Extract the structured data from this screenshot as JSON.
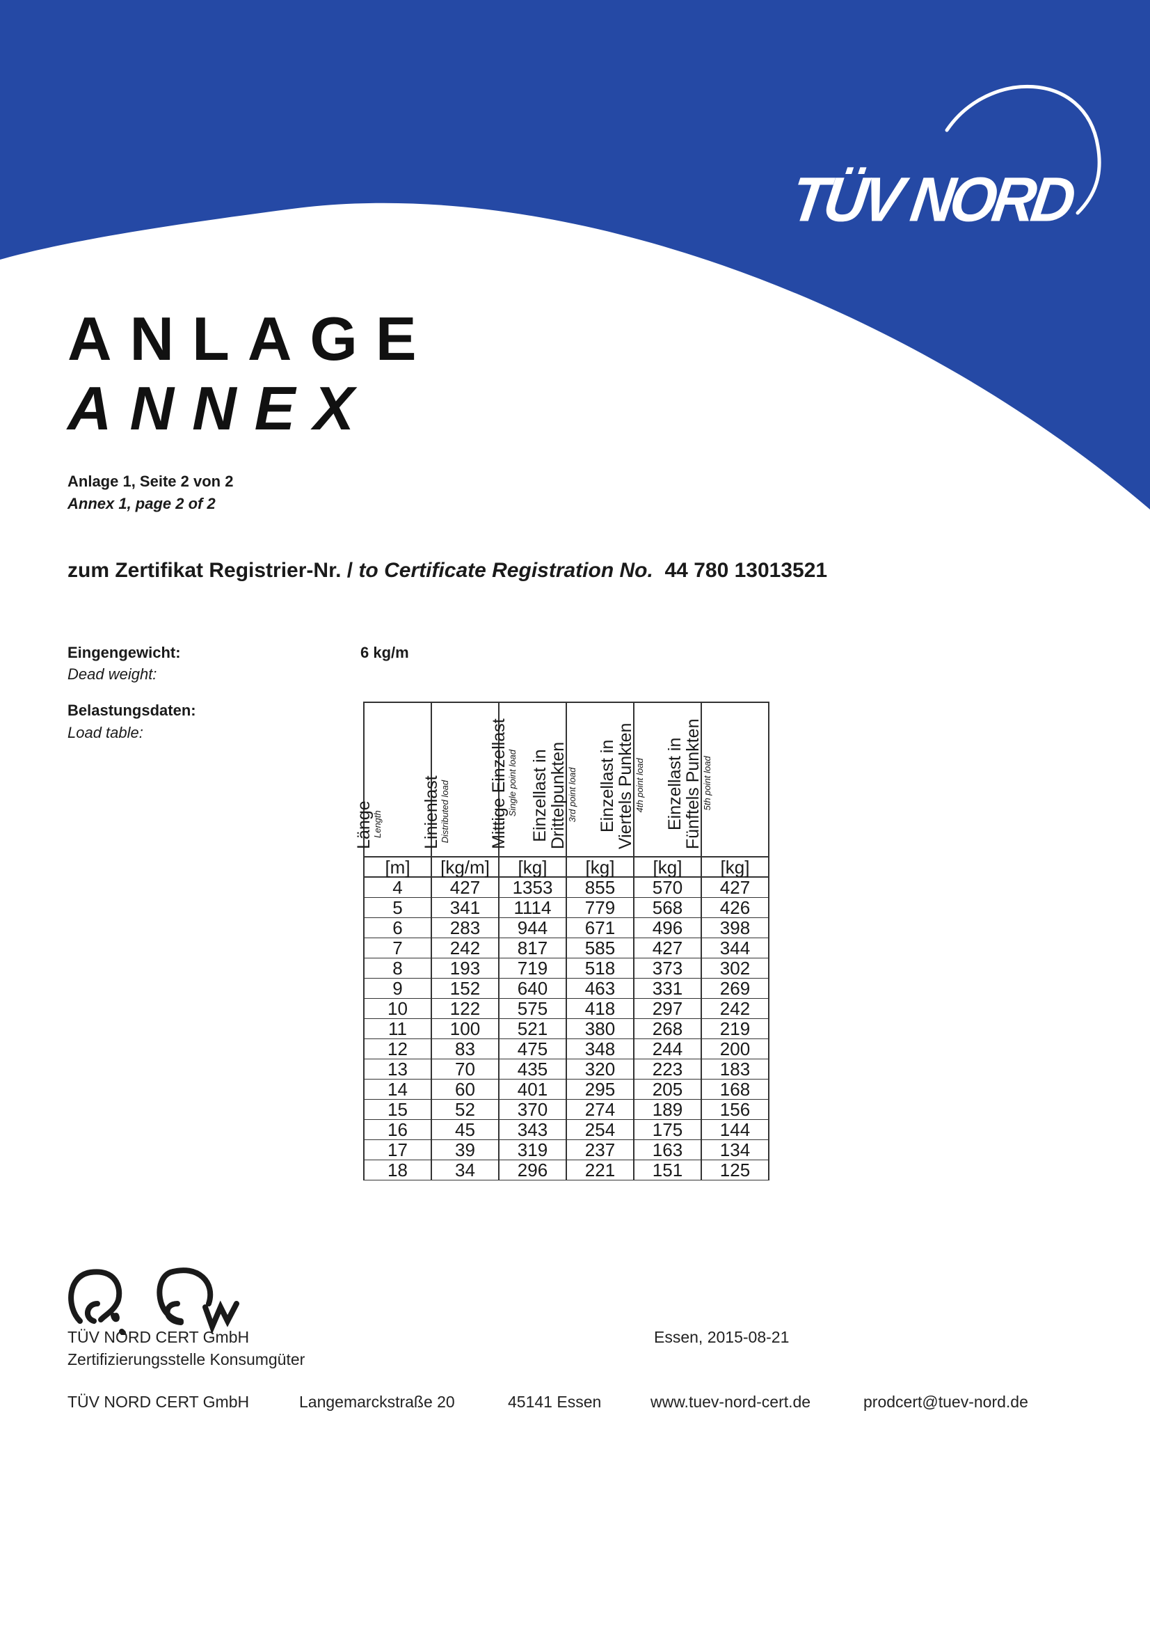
{
  "brand": {
    "logo_text": "TÜV NORD",
    "color": "#2549A5"
  },
  "title": {
    "de": "ANLAGE",
    "en": "ANNEX"
  },
  "page": {
    "de": "Anlage 1, Seite 2 von 2",
    "en": "Annex 1, page 2 of 2"
  },
  "certificate": {
    "label_de": "zum Zertifikat Registrier-Nr. / ",
    "label_en": "to Certificate Registration No.",
    "number": "44 780 13013521"
  },
  "dead_weight": {
    "label_de": "Eingengewicht:",
    "label_en": "Dead weight:",
    "value": "6 kg/m"
  },
  "load_table": {
    "label_de": "Belastungsdaten:",
    "label_en": "Load table:",
    "columns": [
      {
        "de": [
          "Länge"
        ],
        "en": "Length",
        "unit": "[m]"
      },
      {
        "de": [
          "Linienlast"
        ],
        "en": "Distributed load",
        "unit": "[kg/m]"
      },
      {
        "de": [
          "Mittige Einzellast"
        ],
        "en": "Single point load",
        "unit": "[kg]"
      },
      {
        "de": [
          "Einzellast in",
          "Drittelpunkten"
        ],
        "en": "3rd point load",
        "unit": "[kg]"
      },
      {
        "de": [
          "Einzellast in",
          "Viertels Punkten"
        ],
        "en": "4th point load",
        "unit": "[kg]"
      },
      {
        "de": [
          "Einzellast in",
          "Fünftels Punkten"
        ],
        "en": "5th point load",
        "unit": "[kg]"
      }
    ],
    "rows": [
      [
        "4",
        "427",
        "1353",
        "855",
        "570",
        "427"
      ],
      [
        "5",
        "341",
        "1114",
        "779",
        "568",
        "426"
      ],
      [
        "6",
        "283",
        "944",
        "671",
        "496",
        "398"
      ],
      [
        "7",
        "242",
        "817",
        "585",
        "427",
        "344"
      ],
      [
        "8",
        "193",
        "719",
        "518",
        "373",
        "302"
      ],
      [
        "9",
        "152",
        "640",
        "463",
        "331",
        "269"
      ],
      [
        "10",
        "122",
        "575",
        "418",
        "297",
        "242"
      ],
      [
        "11",
        "100",
        "521",
        "380",
        "268",
        "219"
      ],
      [
        "12",
        "83",
        "475",
        "348",
        "244",
        "200"
      ],
      [
        "13",
        "70",
        "435",
        "320",
        "223",
        "183"
      ],
      [
        "14",
        "60",
        "401",
        "295",
        "205",
        "168"
      ],
      [
        "15",
        "52",
        "370",
        "274",
        "189",
        "156"
      ],
      [
        "16",
        "45",
        "343",
        "254",
        "175",
        "144"
      ],
      [
        "17",
        "39",
        "319",
        "237",
        "163",
        "134"
      ],
      [
        "18",
        "34",
        "296",
        "221",
        "151",
        "125"
      ]
    ]
  },
  "signature": {
    "company": "TÜV NORD CERT GmbH",
    "department": "Zertifizierungsstelle Konsumgüter",
    "place_date": "Essen, 2015-08-21"
  },
  "footer": {
    "company": "TÜV NORD CERT GmbH",
    "street": "Langemarckstraße 20",
    "city": "45141 Essen",
    "web": "www.tuev-nord-cert.de",
    "email": "prodcert@tuev-nord.de"
  }
}
